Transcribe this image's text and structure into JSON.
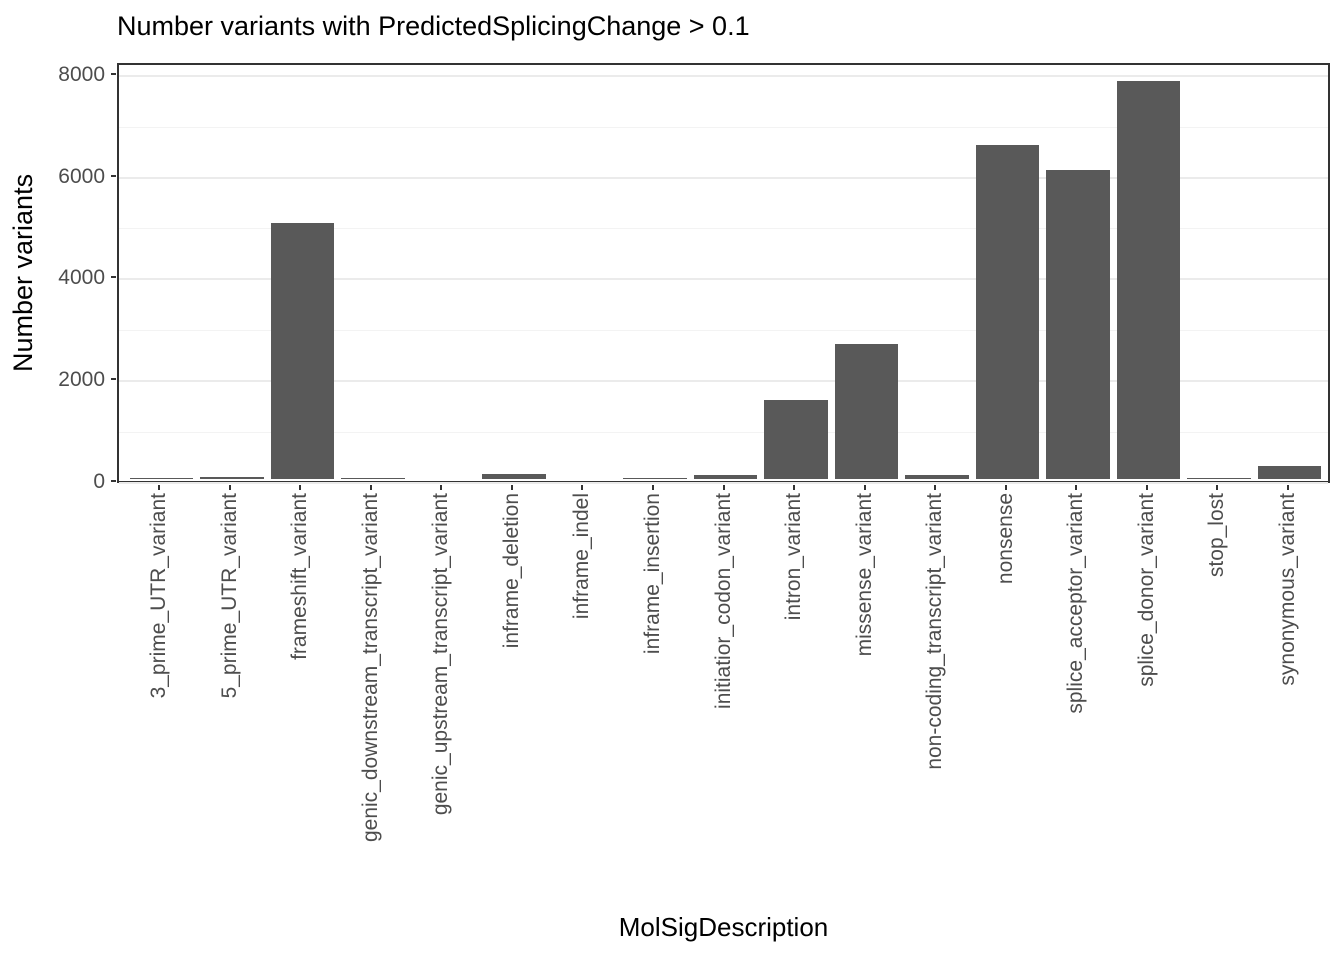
{
  "chart_data": {
    "type": "bar",
    "title": "Number variants with PredictedSplicingChange > 0.1",
    "xlabel": "MolSigDescription",
    "ylabel": "Number variants",
    "categories": [
      "3_prime_UTR_variant",
      "5_prime_UTR_variant",
      "frameshift_variant",
      "genic_downstream_transcript_variant",
      "genic_upstream_transcript_variant",
      "inframe_deletion",
      "inframe_indel",
      "inframe_insertion",
      "initiatior_codon_variant",
      "intron_variant",
      "missense_variant",
      "non-coding_transcript_variant",
      "nonsense",
      "splice_acceptor_variant",
      "splice_donor_variant",
      "stop_lost",
      "synonymous_variant"
    ],
    "values": [
      25,
      45,
      5030,
      20,
      0,
      100,
      0,
      20,
      70,
      1560,
      2650,
      80,
      6570,
      6080,
      7820,
      25,
      250
    ],
    "ylim": [
      0,
      8212
    ],
    "yticks": [
      0,
      2000,
      4000,
      6000,
      8000
    ],
    "yticks_minor": [
      1000,
      3000,
      5000,
      7000
    ],
    "grid": "horizontal major and minor, no vertical emphasis",
    "legend": "none",
    "bar_width_ratio": 0.9,
    "colors": {
      "bar": "#595959",
      "panel_border": "#333333",
      "grid_major": "#EBEBEB",
      "grid_minor": "#F3F3F3",
      "tick_mark": "#333333",
      "tick_label": "#4D4D4D",
      "axis_title": "#000000",
      "background": "#FFFFFF"
    }
  }
}
